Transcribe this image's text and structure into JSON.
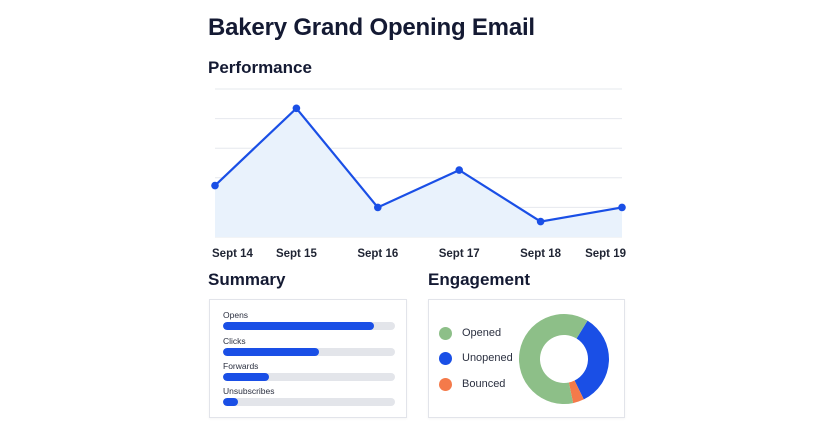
{
  "title": "Bakery Grand Opening Email",
  "performance": {
    "heading": "Performance"
  },
  "chart_data": {
    "type": "area",
    "x": [
      "Sept 14",
      "Sept 15",
      "Sept 16",
      "Sept 17",
      "Sept 18",
      "Sept 19"
    ],
    "series": [
      {
        "values": [
          40,
          100,
          23,
          52,
          12,
          23
        ]
      }
    ],
    "ylim": [
      0,
      115
    ],
    "grid": true,
    "line_color": "#1a4fe6",
    "fill_color": "#e9f2fc"
  },
  "summary": {
    "heading": "Summary",
    "bars": [
      {
        "label": "Opens",
        "value": 0.88
      },
      {
        "label": "Clicks",
        "value": 0.56
      },
      {
        "label": "Forwards",
        "value": 0.27
      },
      {
        "label": "Unsubscribes",
        "value": 0.09
      }
    ],
    "bar_color": "#1a4fe6",
    "track_color": "#e3e5ea"
  },
  "engagement": {
    "heading": "Engagement",
    "slices": [
      {
        "label": "Opened",
        "value": 62,
        "color": "#8dbf88"
      },
      {
        "label": "Unopened",
        "value": 34,
        "color": "#1a4fe6"
      },
      {
        "label": "Bounced",
        "value": 4,
        "color": "#f47a4a"
      }
    ]
  }
}
